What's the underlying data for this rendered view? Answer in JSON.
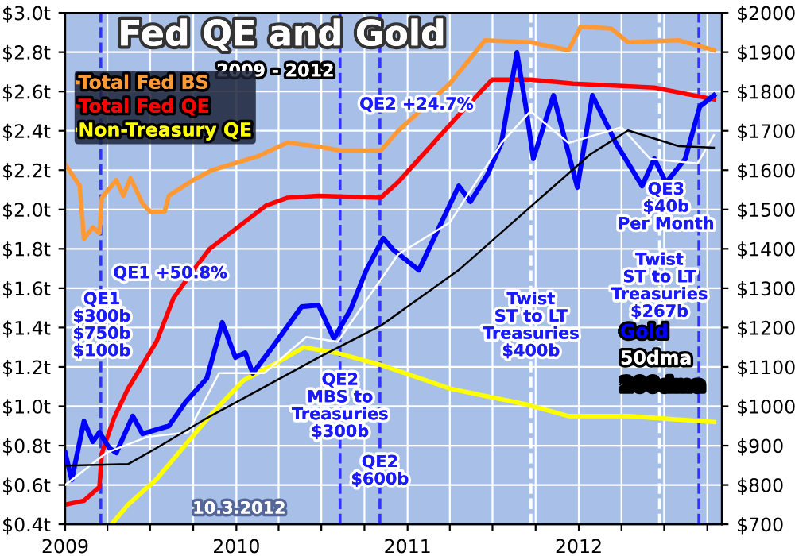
{
  "chart_data": {
    "type": "line",
    "title": "Fed QE and Gold",
    "subtitle": "2009 - 2012",
    "xlim": [
      "2009-01-01",
      "2012-11-01"
    ],
    "xticks": [
      {
        "value": "2009-01-01",
        "label": "2009"
      },
      {
        "value": "2009-04-01",
        "label": null
      },
      {
        "value": "2009-07-01",
        "label": null
      },
      {
        "value": "2009-10-01",
        "label": null
      },
      {
        "value": "2010-01-01",
        "label": "2010"
      },
      {
        "value": "2010-04-01",
        "label": null
      },
      {
        "value": "2010-07-01",
        "label": null
      },
      {
        "value": "2010-10-01",
        "label": null
      },
      {
        "value": "2011-01-01",
        "label": "2011"
      },
      {
        "value": "2011-04-01",
        "label": null
      },
      {
        "value": "2011-07-01",
        "label": null
      },
      {
        "value": "2011-10-01",
        "label": null
      },
      {
        "value": "2012-01-01",
        "label": "2012"
      },
      {
        "value": "2012-04-01",
        "label": null
      },
      {
        "value": "2012-07-01",
        "label": null
      },
      {
        "value": "2012-10-01",
        "label": null
      }
    ],
    "ylim": [
      0.4,
      3.0
    ],
    "yticks": [
      {
        "value": 0.4,
        "label": "$0.4t"
      },
      {
        "value": 0.6,
        "label": "$0.6t"
      },
      {
        "value": 0.8,
        "label": "$0.8t"
      },
      {
        "value": 1.0,
        "label": "$1.0t"
      },
      {
        "value": 1.2,
        "label": "$1.2t"
      },
      {
        "value": 1.4,
        "label": "$1.4t"
      },
      {
        "value": 1.6,
        "label": "$1.6t"
      },
      {
        "value": 1.8,
        "label": "$1.8t"
      },
      {
        "value": 2.0,
        "label": "$2.0t"
      },
      {
        "value": 2.2,
        "label": "$2.2t"
      },
      {
        "value": 2.4,
        "label": "$2.4t"
      },
      {
        "value": 2.6,
        "label": "$2.6t"
      },
      {
        "value": 2.8,
        "label": "$2.8t"
      },
      {
        "value": 3.0,
        "label": "$3.0t"
      }
    ],
    "y2lim": [
      700,
      2000
    ],
    "y2ticks": [
      {
        "value": 700,
        "label": "$700"
      },
      {
        "value": 800,
        "label": "$800"
      },
      {
        "value": 900,
        "label": "$900"
      },
      {
        "value": 1000,
        "label": "$1000"
      },
      {
        "value": 1100,
        "label": "$1100"
      },
      {
        "value": 1200,
        "label": "$1200"
      },
      {
        "value": 1300,
        "label": "$1300"
      },
      {
        "value": 1400,
        "label": "$1400"
      },
      {
        "value": 1500,
        "label": "$1500"
      },
      {
        "value": 1600,
        "label": "$1600"
      },
      {
        "value": 1700,
        "label": "$1700"
      },
      {
        "value": 1800,
        "label": "$1800"
      },
      {
        "value": 1900,
        "label": "$1900"
      },
      {
        "value": 2000,
        "label": "$2000"
      }
    ],
    "grid": true,
    "legend": "top left",
    "line_style": "solid",
    "series": [
      {
        "name": "Total Fed BS",
        "color": "#ff9933",
        "x": [
          "2009-01-01",
          "2009-02-01",
          "2009-02-10",
          "2009-03-01",
          "2009-03-15",
          "2009-03-20",
          "2009-04-20",
          "2009-05-05",
          "2009-05-20",
          "2009-06-15",
          "2009-07-01",
          "2009-08-01",
          "2009-08-10",
          "2009-10-01",
          "2009-11-10",
          "2010-02-15",
          "2010-04-20",
          "2010-06-25",
          "2010-08-10",
          "2010-11-05",
          "2010-12-12",
          "2011-04-01",
          "2011-06-15",
          "2011-09-20",
          "2011-12-10",
          "2012-01-05",
          "2012-03-10",
          "2012-04-15",
          "2012-08-01",
          "2012-10-15"
        ],
        "values": [
          2.23,
          2.12,
          1.85,
          1.91,
          1.88,
          2.06,
          2.15,
          2.07,
          2.16,
          2.03,
          1.99,
          1.99,
          2.07,
          2.15,
          2.2,
          2.27,
          2.34,
          2.32,
          2.3,
          2.3,
          2.4,
          2.64,
          2.86,
          2.85,
          2.81,
          2.93,
          2.92,
          2.85,
          2.86,
          2.81
        ]
      },
      {
        "name": "Total Fed QE",
        "color": "#ff0000",
        "x": [
          "2009-01-01",
          "2009-02-10",
          "2009-03-15",
          "2009-03-20",
          "2009-04-15",
          "2009-05-15",
          "2009-07-15",
          "2009-08-20",
          "2009-10-01",
          "2009-11-05",
          "2010-01-15",
          "2010-03-05",
          "2010-04-20",
          "2010-06-25",
          "2010-11-05",
          "2010-12-12",
          "2011-04-20",
          "2011-06-30",
          "2011-09-20",
          "2011-12-20",
          "2012-06-10",
          "2012-10-15"
        ],
        "values": [
          0.5,
          0.52,
          0.59,
          0.76,
          0.94,
          1.09,
          1.33,
          1.55,
          1.69,
          1.8,
          1.93,
          2.02,
          2.06,
          2.07,
          2.06,
          2.14,
          2.48,
          2.66,
          2.66,
          2.64,
          2.62,
          2.56
        ]
      },
      {
        "name": "Non-Treasury QE",
        "color": "#ffff00",
        "x": [
          "2009-04-10",
          "2009-05-15",
          "2009-07-15",
          "2009-09-20",
          "2009-11-05",
          "2010-01-15",
          "2010-03-20",
          "2010-05-25",
          "2010-08-05",
          "2010-11-05",
          "2010-12-12",
          "2011-04-01",
          "2011-09-10",
          "2011-12-10",
          "2012-04-15",
          "2012-10-15"
        ],
        "values": [
          0.4,
          0.5,
          0.63,
          0.82,
          0.95,
          1.13,
          1.21,
          1.3,
          1.27,
          1.21,
          1.18,
          1.09,
          1.01,
          0.95,
          0.95,
          0.92
        ]
      },
      {
        "name": "Gold",
        "color": "#0000ff",
        "axis": "y2",
        "x": [
          "2009-01-01",
          "2009-01-15",
          "2009-02-10",
          "2009-03-01",
          "2009-03-15",
          "2009-04-05",
          "2009-04-20",
          "2009-05-25",
          "2009-06-15",
          "2009-08-10",
          "2009-09-15",
          "2009-10-30",
          "2009-12-02",
          "2009-12-30",
          "2010-01-20",
          "2010-02-05",
          "2010-03-20",
          "2010-05-20",
          "2010-06-25",
          "2010-07-28",
          "2010-09-01",
          "2010-10-05",
          "2010-11-10",
          "2010-12-01",
          "2011-01-25",
          "2011-04-20",
          "2011-05-15",
          "2011-06-20",
          "2011-07-20",
          "2011-08-22",
          "2011-09-10",
          "2011-09-26",
          "2011-11-08",
          "2011-12-29",
          "2012-01-30",
          "2012-03-20",
          "2012-05-15",
          "2012-06-10",
          "2012-07-05",
          "2012-08-15",
          "2012-09-15",
          "2012-10-15"
        ],
        "values": [
          882,
          813,
          962,
          910,
          934,
          894,
          882,
          975,
          930,
          950,
          1011,
          1071,
          1213,
          1124,
          1136,
          1084,
          1152,
          1253,
          1257,
          1172,
          1245,
          1346,
          1427,
          1398,
          1346,
          1560,
          1520,
          1588,
          1669,
          1899,
          1762,
          1629,
          1790,
          1556,
          1790,
          1669,
          1560,
          1629,
          1568,
          1629,
          1762,
          1790
        ]
      },
      {
        "name": "50dma",
        "color": "#ffffff",
        "axis": "y2",
        "x": [
          "2009-01-01",
          "2009-03-30",
          "2009-06-25",
          "2009-09-20",
          "2009-11-25",
          "2010-03-01",
          "2010-05-30",
          "2010-08-05",
          "2010-12-12",
          "2011-04-01",
          "2011-07-20",
          "2011-09-20",
          "2011-12-10",
          "2012-04-01",
          "2012-06-01",
          "2012-09-10",
          "2012-10-15"
        ],
        "values": [
          800,
          882,
          922,
          934,
          1084,
          1084,
          1176,
          1164,
          1386,
          1467,
          1669,
          1750,
          1669,
          1709,
          1629,
          1617,
          1689
        ]
      },
      {
        "name": "200dma",
        "color": "#000000",
        "axis": "y2",
        "x": [
          "2009-01-01",
          "2009-05-15",
          "2009-07-15",
          "2009-10-30",
          "2010-03-05",
          "2010-06-25",
          "2010-11-05",
          "2011-04-20",
          "2011-09-20",
          "2012-01-25",
          "2012-04-15",
          "2012-08-01",
          "2012-10-15"
        ],
        "values": [
          849,
          853,
          894,
          970,
          1051,
          1124,
          1205,
          1346,
          1507,
          1640,
          1701,
          1661,
          1657
        ]
      }
    ],
    "ref_lines": [
      {
        "axis": "x",
        "value": "2009-03-18",
        "color": "#3333ff",
        "line_style": "dashed"
      },
      {
        "axis": "x",
        "value": "2010-08-10",
        "color": "#3333ff",
        "line_style": "dashed"
      },
      {
        "axis": "x",
        "value": "2010-11-03",
        "color": "#3333ff",
        "line_style": "dashed"
      },
      {
        "axis": "x",
        "value": "2011-09-21",
        "color": "#ffffff",
        "line_style": "dashed"
      },
      {
        "axis": "x",
        "value": "2012-06-21",
        "color": "#ffffff",
        "line_style": "dashed"
      },
      {
        "axis": "x",
        "value": "2012-09-13",
        "color": "#3333ff",
        "line_style": "dashed"
      }
    ],
    "annotations": [
      "QE1 +50.8%",
      "QE2 +24.7%",
      {
        "text": "QE1\n$300b\n$750b\n$100b",
        "x": "2009-03-20",
        "y": 1.41
      },
      {
        "text": "QE2\nMBS to\nTreasuries\n$300b",
        "x": "2010-08-10",
        "y": 1.0
      },
      {
        "text": "QE2\n$600b",
        "x": "2010-11-03",
        "y": 0.67
      },
      {
        "text": "Twist\nST to LT\nTreasuries\n$400b",
        "x": "2011-09-21",
        "y": 1.41
      },
      {
        "text": "Twist\nST to LT\nTreasuries\n$267b",
        "x": "2012-06-21",
        "y": 1.61
      },
      "QE3\n$40b\nPer Month",
      "10.3.2012"
    ]
  }
}
